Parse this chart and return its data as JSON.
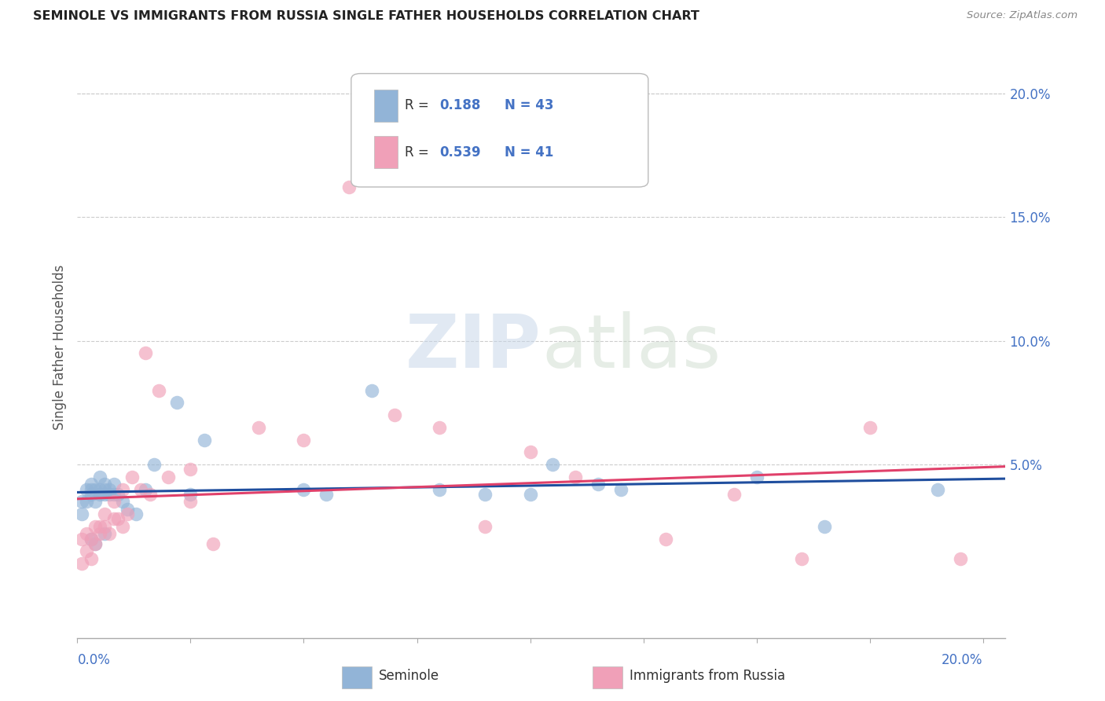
{
  "title": "SEMINOLE VS IMMIGRANTS FROM RUSSIA SINGLE FATHER HOUSEHOLDS CORRELATION CHART",
  "source": "Source: ZipAtlas.com",
  "ylabel": "Single Father Households",
  "seminole_color": "#92b4d7",
  "russia_color": "#f0a0b8",
  "trend_seminole_color": "#1f4e9e",
  "trend_russia_color": "#e0406a",
  "watermark_zip": "ZIP",
  "watermark_atlas": "atlas",
  "seminole_x": [
    0.001,
    0.001,
    0.002,
    0.002,
    0.003,
    0.003,
    0.003,
    0.004,
    0.004,
    0.005,
    0.005,
    0.005,
    0.006,
    0.006,
    0.006,
    0.007,
    0.007,
    0.008,
    0.008,
    0.009,
    0.01,
    0.011,
    0.013,
    0.015,
    0.017,
    0.025,
    0.028,
    0.05,
    0.055,
    0.065,
    0.08,
    0.09,
    0.1,
    0.105,
    0.115,
    0.12,
    0.15,
    0.165,
    0.19,
    0.003,
    0.004,
    0.006,
    0.022
  ],
  "seminole_y": [
    0.03,
    0.035,
    0.035,
    0.04,
    0.038,
    0.04,
    0.042,
    0.035,
    0.04,
    0.038,
    0.04,
    0.045,
    0.038,
    0.04,
    0.042,
    0.038,
    0.04,
    0.038,
    0.042,
    0.038,
    0.035,
    0.032,
    0.03,
    0.04,
    0.05,
    0.038,
    0.06,
    0.04,
    0.038,
    0.08,
    0.04,
    0.038,
    0.038,
    0.05,
    0.042,
    0.04,
    0.045,
    0.025,
    0.04,
    0.02,
    0.018,
    0.022,
    0.075
  ],
  "russia_x": [
    0.001,
    0.001,
    0.002,
    0.002,
    0.003,
    0.003,
    0.004,
    0.004,
    0.005,
    0.005,
    0.006,
    0.006,
    0.007,
    0.008,
    0.008,
    0.009,
    0.01,
    0.01,
    0.011,
    0.012,
    0.014,
    0.015,
    0.016,
    0.018,
    0.02,
    0.025,
    0.025,
    0.03,
    0.04,
    0.05,
    0.06,
    0.07,
    0.08,
    0.09,
    0.1,
    0.11,
    0.13,
    0.145,
    0.16,
    0.175,
    0.195
  ],
  "russia_y": [
    0.01,
    0.02,
    0.015,
    0.022,
    0.012,
    0.02,
    0.018,
    0.025,
    0.022,
    0.025,
    0.025,
    0.03,
    0.022,
    0.028,
    0.035,
    0.028,
    0.04,
    0.025,
    0.03,
    0.045,
    0.04,
    0.095,
    0.038,
    0.08,
    0.045,
    0.048,
    0.035,
    0.018,
    0.065,
    0.06,
    0.162,
    0.07,
    0.065,
    0.025,
    0.055,
    0.045,
    0.02,
    0.038,
    0.012,
    0.065,
    0.012
  ],
  "xlim": [
    0.0,
    0.205
  ],
  "ylim": [
    -0.02,
    0.215
  ],
  "yticks": [
    0.0,
    0.05,
    0.1,
    0.15,
    0.2
  ],
  "ytick_labels": [
    "",
    "5.0%",
    "10.0%",
    "15.0%",
    "20.0%"
  ],
  "xtick_labels_show": [
    "0.0%",
    "20.0%"
  ],
  "leg_R1": "R = ",
  "leg_V1": "0.188",
  "leg_N1": "N = 43",
  "leg_R2": "R = ",
  "leg_V2": "0.539",
  "leg_N2": "N = 41"
}
